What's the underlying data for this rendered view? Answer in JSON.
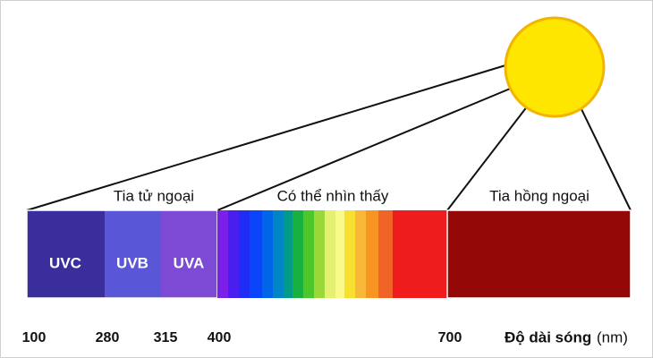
{
  "groups": [
    "Tia tử ngoại",
    "Có thể nhìn thấy",
    "Tia hồng ngoại"
  ],
  "bands": [
    "UVC",
    "UVB",
    "UVA"
  ],
  "scale": [
    "100",
    "280",
    "315",
    "400",
    "700"
  ],
  "axis": {
    "title": "Độ dài sóng",
    "unit": "(nm)"
  }
}
